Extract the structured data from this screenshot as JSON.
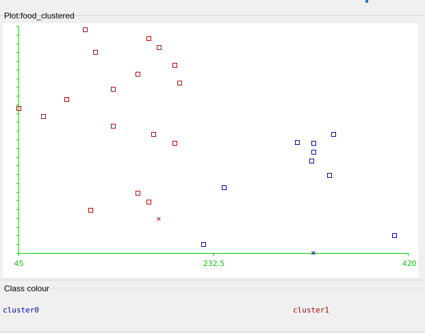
{
  "plot_panel": {
    "title": "Plot:food_clustered"
  },
  "legend_panel": {
    "title": "Class colour",
    "items": [
      {
        "label": "cluster0",
        "color": "#0000b4"
      },
      {
        "label": "cluster1",
        "color": "#b40000"
      }
    ]
  },
  "colors": {
    "axis": "#00cc00",
    "cluster0": "#0000b4",
    "cluster1": "#b40000"
  },
  "chart_data": {
    "type": "scatter",
    "xlim": [
      45,
      420
    ],
    "x_ticks": [
      "45",
      "232.5",
      "420"
    ],
    "x_tick_values": [
      45,
      232.5,
      420
    ],
    "ylim": [
      0,
      26
    ],
    "grid": false,
    "series": [
      {
        "name": "cluster0",
        "color": "#0000b4",
        "marker": "square",
        "points": [
          [
            313,
            12.7
          ],
          [
            348,
            13.6
          ],
          [
            344,
            8.9
          ],
          [
            327,
            10.6
          ],
          [
            329,
            11.6
          ],
          [
            329,
            12.6
          ],
          [
            243,
            7.5
          ],
          [
            223,
            1.0
          ],
          [
            407,
            2.0
          ]
        ],
        "centroids": [
          [
            329,
            0
          ]
        ]
      },
      {
        "name": "cluster1",
        "color": "#b40000",
        "marker": "square",
        "points": [
          [
            109,
            25.6
          ],
          [
            119,
            23.0
          ],
          [
            170,
            24.6
          ],
          [
            180,
            23.6
          ],
          [
            195,
            21.5
          ],
          [
            160,
            20.5
          ],
          [
            200,
            19.5
          ],
          [
            136,
            18.8
          ],
          [
            91,
            17.6
          ],
          [
            45,
            16.6
          ],
          [
            69,
            15.7
          ],
          [
            136,
            14.6
          ],
          [
            175,
            13.6
          ],
          [
            195,
            12.6
          ],
          [
            160,
            6.9
          ],
          [
            170,
            5.9
          ],
          [
            114,
            4.9
          ]
        ],
        "centroids": [
          [
            180,
            3.9
          ]
        ]
      }
    ]
  }
}
